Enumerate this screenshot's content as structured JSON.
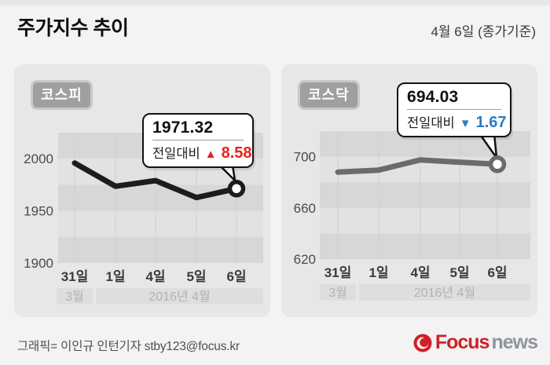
{
  "header": {
    "title": "주가지수 추이",
    "date_note": "4월 6일 (종가기준)"
  },
  "colors": {
    "up_red": "#e5231e",
    "down_blue": "#2e7cc0",
    "stripe_dark": "#d7d7d7",
    "stripe_light": "#e2e2e2",
    "gridline": "#cfcfcf",
    "ytick_text": "#4a4a4a",
    "xtick_text": "#3b3b3b",
    "period_band": "#dedede",
    "period_text": "#b2b2b2",
    "logo_red": "#cf2027",
    "logo_gray": "#8d949c"
  },
  "charts": [
    {
      "id": "kospi",
      "badge": "코스피",
      "callout": {
        "value": "1971.32",
        "change_label": "전일대비",
        "arrow": "▲",
        "change": "8.58",
        "direction": "up",
        "change_color": "#e5231e"
      },
      "chart_data": {
        "type": "line",
        "x": [
          "31일",
          "1일",
          "4일",
          "5일",
          "6일"
        ],
        "values": [
          1995.85,
          1973.57,
          1978.97,
          1962.74,
          1971.32
        ],
        "ylim": [
          1900,
          2025
        ],
        "yticks": [
          2000,
          1950,
          1900
        ],
        "band_size": 25,
        "x_period_labels": [
          "3월",
          "2016년 4월"
        ],
        "line_color": "#1c1c1c",
        "grid": true,
        "legend": "none"
      }
    },
    {
      "id": "kosdaq",
      "badge": "코스닥",
      "callout": {
        "value": "694.03",
        "change_label": "전일대비",
        "arrow": "▼",
        "change": "1.67",
        "direction": "down",
        "change_color": "#2e7cc0"
      },
      "chart_data": {
        "type": "line",
        "x": [
          "31일",
          "1일",
          "4일",
          "5일",
          "6일"
        ],
        "values": [
          687.9,
          689.5,
          697.5,
          695.7,
          694.03
        ],
        "ylim": [
          620,
          720
        ],
        "yticks": [
          700,
          660,
          620
        ],
        "band_size": 20,
        "x_period_labels": [
          "3월",
          "2016년 4월"
        ],
        "line_color": "#6b6b6b",
        "grid": true,
        "legend": "none"
      }
    }
  ],
  "footer": {
    "credit": "그래픽= 이인규 인턴기자 stby123@focus.kr",
    "logo_focus": "Focus",
    "logo_news": "news"
  }
}
